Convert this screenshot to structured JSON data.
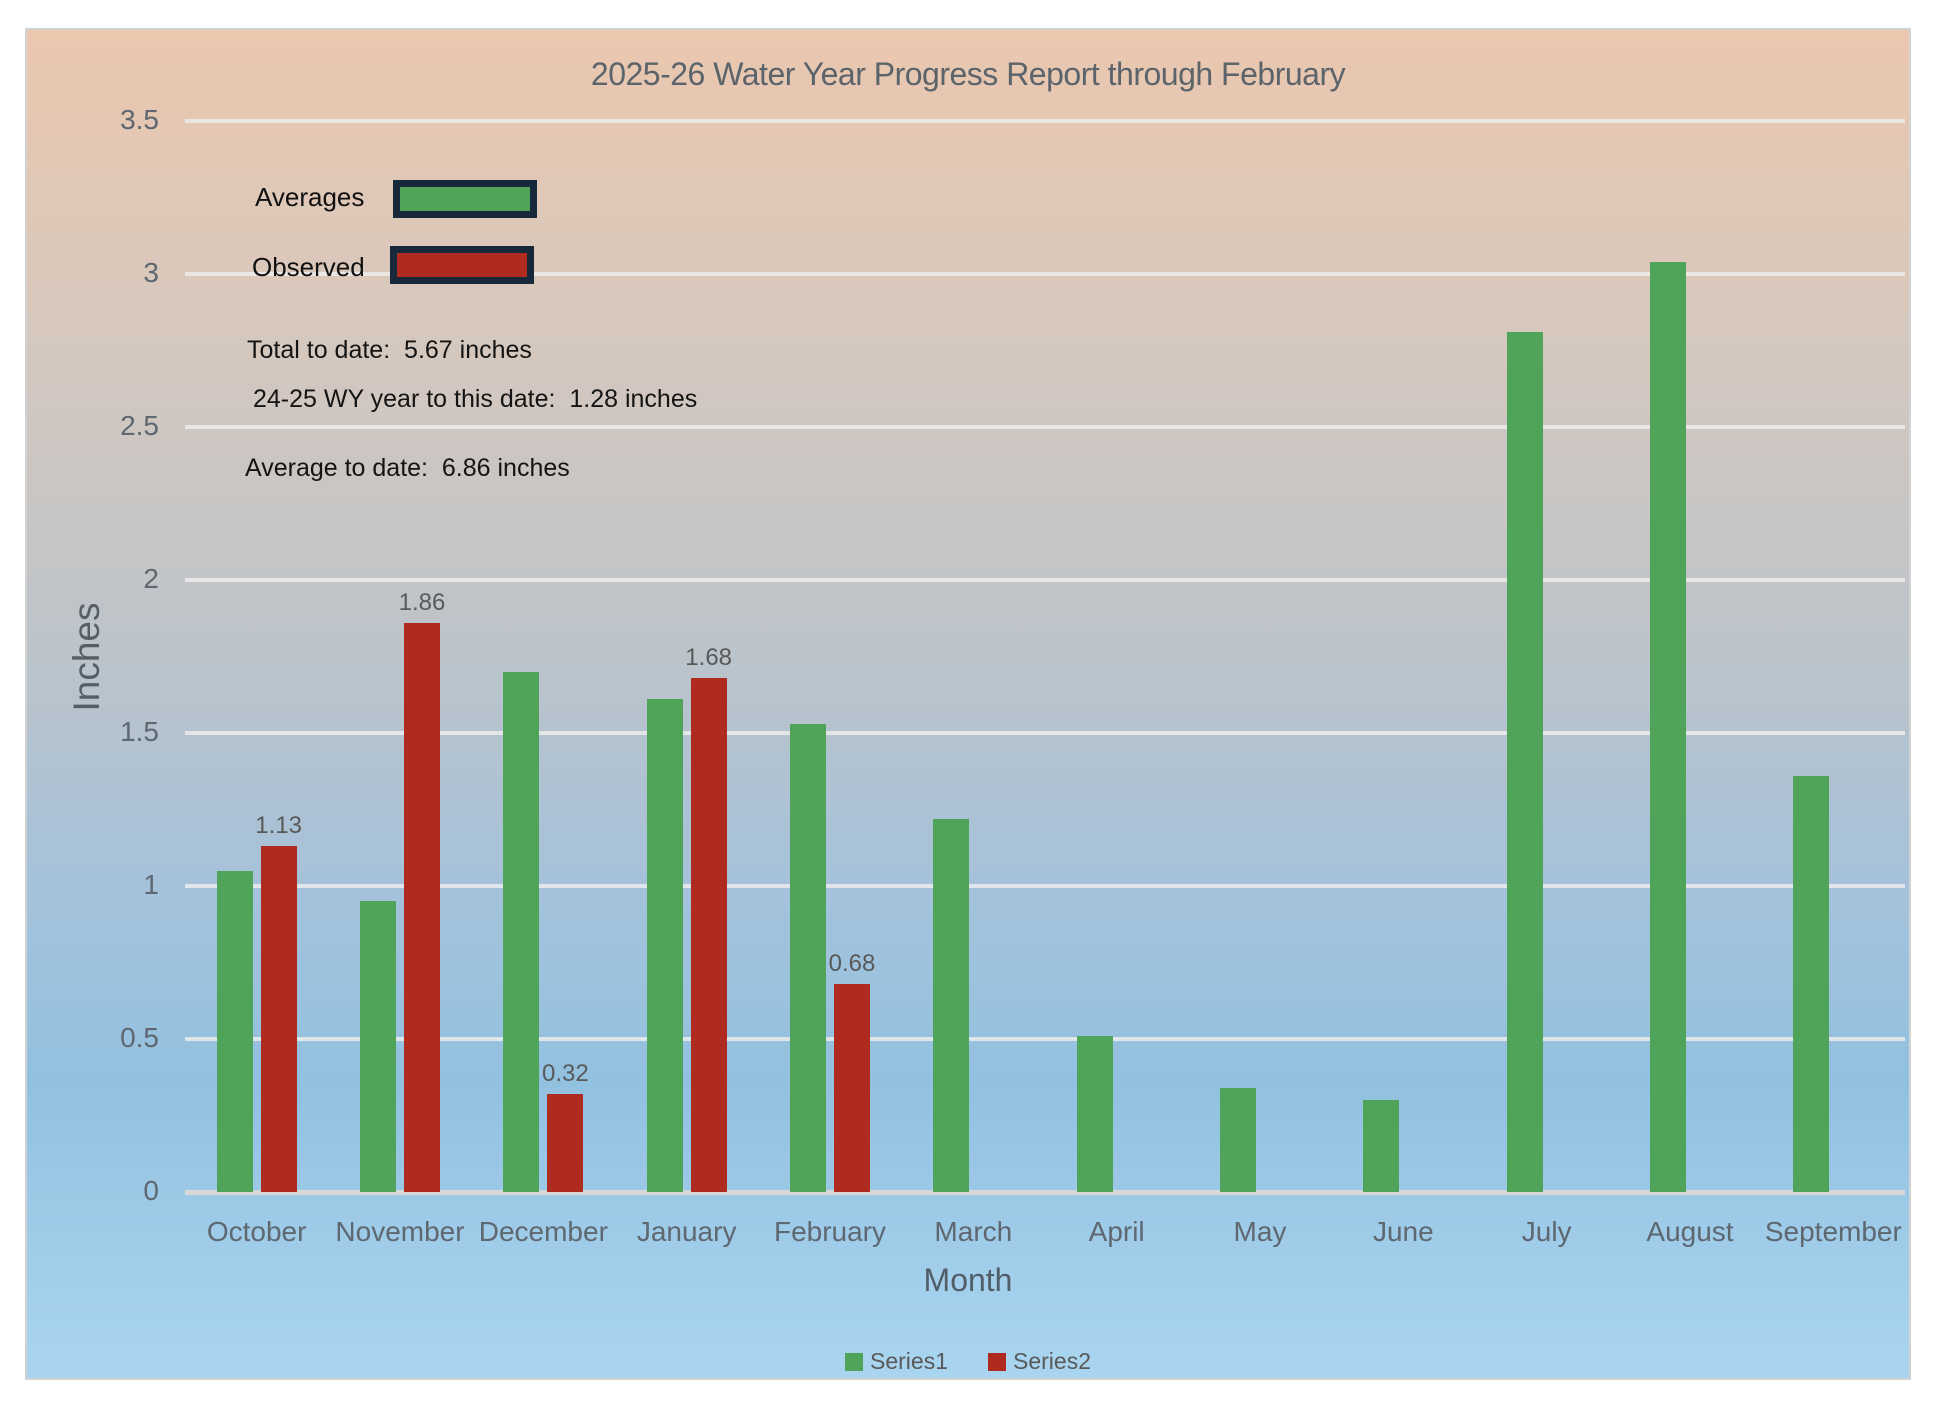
{
  "chart_data": {
    "type": "bar",
    "title": "2025-26 Water Year Progress Report through February",
    "xlabel": "Month",
    "ylabel": "Inches",
    "ylim": [
      0,
      3.5
    ],
    "ytick_step": 0.5,
    "grid": "horizontal",
    "legend_position": "bottom",
    "categories": [
      "October",
      "November",
      "December",
      "January",
      "February",
      "March",
      "April",
      "May",
      "June",
      "July",
      "August",
      "September"
    ],
    "series": [
      {
        "name": "Series1",
        "legend_label": "Averages",
        "color": "#4FA45A",
        "values": [
          1.05,
          0.95,
          1.7,
          1.61,
          1.53,
          1.22,
          0.51,
          0.34,
          0.3,
          2.81,
          3.04,
          1.36
        ]
      },
      {
        "name": "Series2",
        "legend_label": "Observed",
        "color": "#AF2A1F",
        "values": [
          1.13,
          1.86,
          0.32,
          1.68,
          0.68,
          null,
          null,
          null,
          null,
          null,
          null,
          null
        ],
        "data_labels": [
          "1.13",
          "1.86",
          "0.32",
          "1.68",
          "0.68"
        ]
      }
    ],
    "annotations": [
      "Total to date:  5.67 inches",
      "24-25 WY year to this date:  1.28 inches",
      "Average to date:  6.86 inches"
    ]
  },
  "legend_top": {
    "averages_label": "Averages",
    "observed_label": "Observed"
  },
  "annotations": {
    "total_to_date": "Total to date:  5.67 inches",
    "prior_wy_to_date": "24-25 WY year to this date:  1.28 inches",
    "average_to_date": "Average to date:  6.86 inches"
  },
  "legend_bottom": {
    "series1_label": "Series1",
    "series2_label": "Series2"
  },
  "colors": {
    "averages_green": "#4FA45A",
    "observed_red": "#AF2A1F",
    "legend_swatch_border": "#16283A",
    "title_text": "#5B636B",
    "axis_text": "#5F6770",
    "annotation_text": "#141414",
    "gridline": "#DCDCDC",
    "gradient_top": "#EBC7AE",
    "gradient_bottom": "#A9D5F0"
  }
}
